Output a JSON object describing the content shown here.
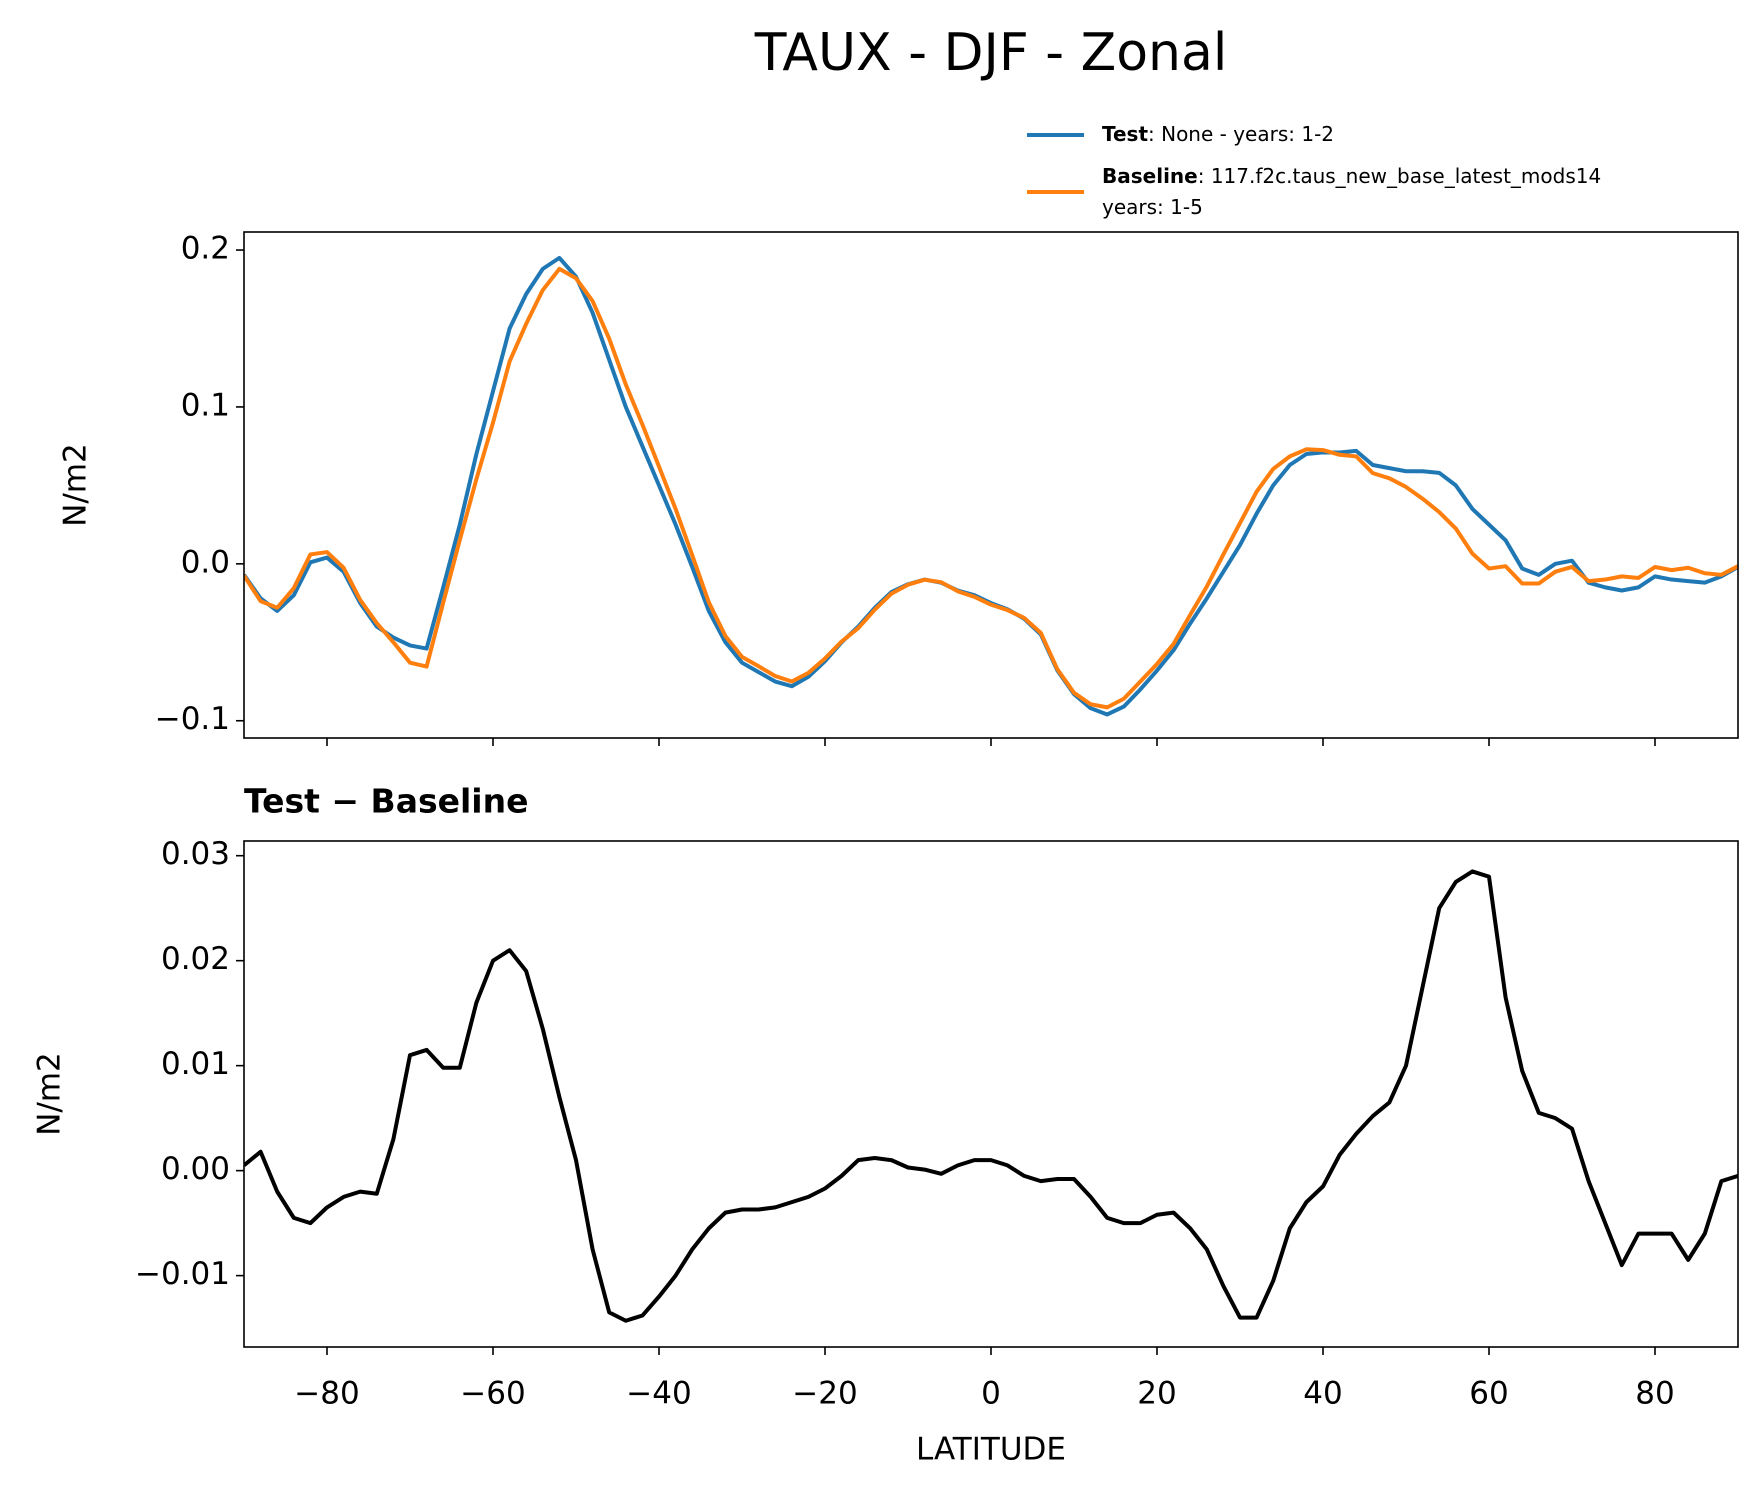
{
  "chart_data": [
    {
      "type": "line",
      "title": "TAUX - DJF - Zonal",
      "ylabel": "N/m2",
      "xlim": [
        -90,
        90
      ],
      "xticks": [
        -80,
        -60,
        -40,
        -20,
        0,
        20,
        40,
        60,
        80
      ],
      "show_xtick_labels": false,
      "ylim": [
        -0.111,
        0.2115
      ],
      "yticks": [
        {
          "value": -0.1,
          "label": "−0.1"
        },
        {
          "value": 0,
          "label": "0.0"
        },
        0.1,
        0.2
      ],
      "x": [
        -90,
        -88,
        -86,
        -84,
        -82,
        -80,
        -78,
        -76,
        -74,
        -72,
        -70,
        -68,
        -66,
        -64,
        -62,
        -60,
        -58,
        -56,
        -54,
        -52,
        -50,
        -48,
        -46,
        -44,
        -42,
        -40,
        -38,
        -36,
        -34,
        -32,
        -30,
        -28,
        -26,
        -24,
        -22,
        -20,
        -18,
        -16,
        -14,
        -12,
        -10,
        -8,
        -6,
        -4,
        -2,
        0,
        2,
        4,
        6,
        8,
        10,
        12,
        14,
        16,
        18,
        20,
        22,
        24,
        26,
        28,
        30,
        32,
        34,
        36,
        38,
        40,
        42,
        44,
        46,
        48,
        50,
        52,
        54,
        56,
        58,
        60,
        62,
        64,
        66,
        68,
        70,
        72,
        74,
        76,
        78,
        80,
        82,
        84,
        86,
        88,
        90
      ],
      "series": [
        {
          "name": "Test",
          "legend_detail": [
            ": None - years: 1-2"
          ],
          "color": "#1f77b4",
          "values": [
            -0.007,
            -0.022,
            -0.03,
            -0.02,
            0.001,
            0.004,
            -0.005,
            -0.025,
            -0.04,
            -0.047,
            -0.052,
            -0.054,
            -0.015,
            0.025,
            0.07,
            0.11,
            0.15,
            0.172,
            0.188,
            0.195,
            0.183,
            0.16,
            0.13,
            0.1,
            0.075,
            0.05,
            0.025,
            -0.002,
            -0.03,
            -0.05,
            -0.063,
            -0.069,
            -0.075,
            -0.078,
            -0.072,
            -0.062,
            -0.05,
            -0.04,
            -0.028,
            -0.018,
            -0.013,
            -0.01,
            -0.012,
            -0.017,
            -0.02,
            -0.025,
            -0.029,
            -0.035,
            -0.045,
            -0.068,
            -0.083,
            -0.092,
            -0.096,
            -0.091,
            -0.08,
            -0.068,
            -0.055,
            -0.038,
            -0.022,
            -0.005,
            0.012,
            0.032,
            0.05,
            0.063,
            0.07,
            0.071,
            0.071,
            0.072,
            0.063,
            0.061,
            0.059,
            0.059,
            0.058,
            0.05,
            0.035,
            0.025,
            0.015,
            -0.003,
            -0.007,
            0,
            0.002,
            -0.012,
            -0.015,
            -0.017,
            -0.015,
            -0.008,
            -0.01,
            -0.011,
            -0.012,
            -0.008,
            -0.002
          ]
        },
        {
          "name": "Baseline",
          "legend_detail": [
            ": 117.f2c.taus_new_base_latest_mods14",
            "years: 1-5"
          ],
          "color": "#ff7f0e",
          "values": [
            -0.0075,
            -0.0238,
            -0.028,
            -0.0155,
            0.006,
            0.0075,
            -0.0025,
            -0.023,
            -0.0378,
            -0.05,
            -0.063,
            -0.0655,
            -0.0248,
            0.0152,
            0.054,
            0.09,
            0.129,
            0.153,
            0.1745,
            0.188,
            0.182,
            0.1675,
            0.1435,
            0.1143,
            0.0888,
            0.062,
            0.035,
            0.0055,
            -0.0245,
            -0.046,
            -0.0593,
            -0.0653,
            -0.0715,
            -0.075,
            -0.0695,
            -0.0603,
            -0.0495,
            -0.041,
            -0.0292,
            -0.019,
            -0.0133,
            -0.0101,
            -0.0117,
            -0.0175,
            -0.021,
            -0.026,
            -0.0295,
            -0.0345,
            -0.044,
            -0.0672,
            -0.0822,
            -0.0895,
            -0.0915,
            -0.086,
            -0.075,
            -0.0638,
            -0.051,
            -0.0325,
            -0.0145,
            0.006,
            0.026,
            0.046,
            0.0605,
            0.0685,
            0.073,
            0.0725,
            0.0695,
            0.0685,
            0.0578,
            0.0545,
            0.049,
            0.0415,
            0.033,
            0.0225,
            0.0065,
            -0.003,
            -0.0015,
            -0.0125,
            -0.0125,
            -0.005,
            -0.002,
            -0.011,
            -0.01,
            -0.008,
            -0.009,
            -0.002,
            -0.004,
            -0.0025,
            -0.006,
            -0.007,
            -0.0015
          ]
        }
      ]
    },
    {
      "type": "line",
      "title": "Test − Baseline",
      "ylabel": "N/m2",
      "xlabel": "LATITUDE",
      "xlim": [
        -90,
        90
      ],
      "xticks": [
        {
          "value": -80,
          "label": "−80"
        },
        {
          "value": -60,
          "label": "−60"
        },
        {
          "value": -40,
          "label": "−40"
        },
        {
          "value": -20,
          "label": "−20"
        },
        0,
        20,
        40,
        60,
        80
      ],
      "show_xtick_labels": true,
      "ylim": [
        -0.0168,
        0.0314
      ],
      "yticks": [
        {
          "value": -0.01,
          "label": "−0.01"
        },
        {
          "value": 0,
          "label": "0.00"
        },
        0.01,
        0.02,
        0.03
      ],
      "x": [
        -90,
        -88,
        -86,
        -84,
        -82,
        -80,
        -78,
        -76,
        -74,
        -72,
        -70,
        -68,
        -66,
        -64,
        -62,
        -60,
        -58,
        -56,
        -54,
        -52,
        -50,
        -48,
        -46,
        -44,
        -42,
        -40,
        -38,
        -36,
        -34,
        -32,
        -30,
        -28,
        -26,
        -24,
        -22,
        -20,
        -18,
        -16,
        -14,
        -12,
        -10,
        -8,
        -6,
        -4,
        -2,
        0,
        2,
        4,
        6,
        8,
        10,
        12,
        14,
        16,
        18,
        20,
        22,
        24,
        26,
        28,
        30,
        32,
        34,
        36,
        38,
        40,
        42,
        44,
        46,
        48,
        50,
        52,
        54,
        56,
        58,
        60,
        62,
        64,
        66,
        68,
        70,
        72,
        74,
        76,
        78,
        80,
        82,
        84,
        86,
        88,
        90
      ],
      "series": [
        {
          "color": "#000000",
          "values": [
            0.0005,
            0.0018,
            -0.002,
            -0.0045,
            -0.005,
            -0.0035,
            -0.0025,
            -0.002,
            -0.0022,
            0.003,
            0.011,
            0.0115,
            0.0098,
            0.0098,
            0.016,
            0.02,
            0.021,
            0.019,
            0.0135,
            0.007,
            0.001,
            -0.0075,
            -0.0135,
            -0.0143,
            -0.0138,
            -0.012,
            -0.01,
            -0.0075,
            -0.0055,
            -0.004,
            -0.0037,
            -0.0037,
            -0.0035,
            -0.003,
            -0.0025,
            -0.0017,
            -0.0005,
            0.001,
            0.0012,
            0.001,
            0.0003,
            0.0001,
            -0.0003,
            0.0005,
            0.001,
            0.001,
            0.0005,
            -0.0005,
            -0.001,
            -0.0008,
            -0.0008,
            -0.0025,
            -0.0045,
            -0.005,
            -0.005,
            -0.0042,
            -0.004,
            -0.0055,
            -0.0075,
            -0.011,
            -0.014,
            -0.014,
            -0.0105,
            -0.0055,
            -0.003,
            -0.0015,
            0.0015,
            0.0035,
            0.0052,
            0.0065,
            0.01,
            0.0175,
            0.025,
            0.0275,
            0.0285,
            0.028,
            0.0165,
            0.0095,
            0.0055,
            0.005,
            0.004,
            -0.001,
            -0.005,
            -0.009,
            -0.006,
            -0.006,
            -0.006,
            -0.0085,
            -0.006,
            -0.001,
            -0.0005
          ]
        }
      ]
    }
  ]
}
